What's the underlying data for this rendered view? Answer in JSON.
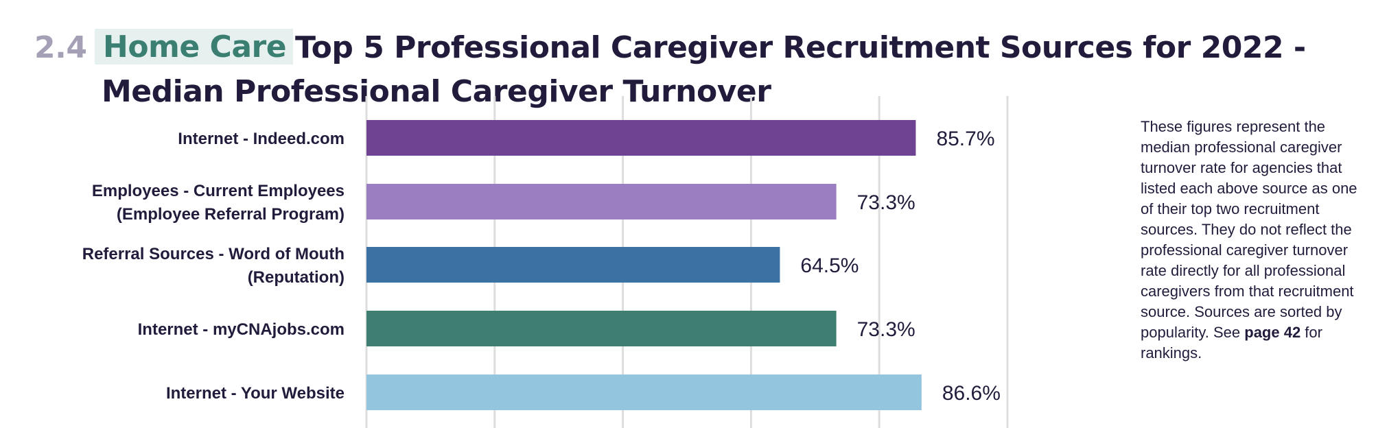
{
  "header": {
    "section_number": "2.4",
    "section_tag": "Home Care",
    "title": "Top 5 Professional Caregiver Recruitment Sources for 2022 - Median Professional Caregiver Turnover"
  },
  "note": {
    "text_before": "These figures represent the median professional caregiver turnover rate for agencies that listed each above source as one of their top two recruitment sources. They do not reflect the professional caregiver turnover rate directly for all professional caregivers from that recruitment source. Sources are sorted by popularity. See ",
    "bold_text": "page 42",
    "text_after": " for rankings."
  },
  "chart_data": {
    "type": "bar",
    "orientation": "horizontal",
    "categories": [
      [
        "Internet - Indeed.com"
      ],
      [
        "Employees - Current Employees",
        "(Employee Referral Program)"
      ],
      [
        "Referral Sources - Word of Mouth",
        "(Reputation)"
      ],
      [
        "Internet - myCNAjobs.com"
      ],
      [
        "Internet - Your Website"
      ]
    ],
    "values": [
      85.7,
      73.3,
      64.5,
      73.3,
      86.6
    ],
    "value_labels": [
      "85.7%",
      "73.3%",
      "64.5%",
      "73.3%",
      "86.6%"
    ],
    "colors": [
      "#6f4392",
      "#9b7dc2",
      "#3b72a4",
      "#3e7f72",
      "#93c5de"
    ],
    "xlim": [
      0,
      100
    ],
    "grid": true,
    "gridline_color": "#dddddd"
  }
}
